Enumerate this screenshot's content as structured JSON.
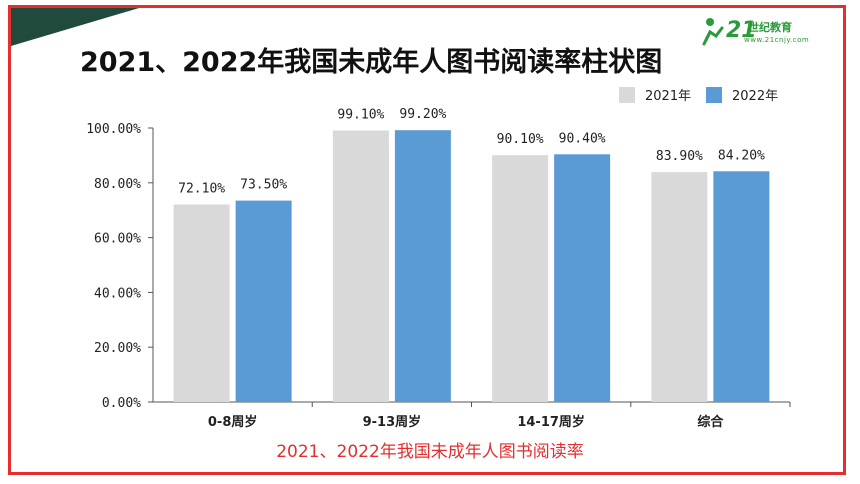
{
  "slide": {
    "title": "2021、2022年我国未成年人图书阅读率柱状图",
    "caption": "2021、2022年我国未成年人图书阅读率",
    "logo": {
      "brand": "21",
      "sub": "世纪教育",
      "url": "www.21cnjy.com"
    }
  },
  "colors": {
    "frame": "#e52e2e",
    "tab": "#1f4a3c",
    "s2021": "#d9d9d9",
    "s2022": "#5b9bd5"
  },
  "chart_data": {
    "type": "bar",
    "categories": [
      "0-8周岁",
      "9-13周岁",
      "14-17周岁",
      "综合"
    ],
    "series": [
      {
        "name": "2021年",
        "values": [
          72.1,
          99.1,
          90.1,
          83.9
        ],
        "labels": [
          "72.10%",
          "99.10%",
          "90.10%",
          "83.90%"
        ],
        "color": "#d9d9d9"
      },
      {
        "name": "2022年",
        "values": [
          73.5,
          99.2,
          90.4,
          84.2
        ],
        "labels": [
          "73.50%",
          "99.20%",
          "90.40%",
          "84.20%"
        ],
        "color": "#5b9bd5"
      }
    ],
    "yticks": [
      "0.00%",
      "20.00%",
      "40.00%",
      "60.00%",
      "80.00%",
      "100.00%"
    ],
    "ylim": [
      0,
      100
    ],
    "legend_position": "top-right",
    "grid": false
  }
}
